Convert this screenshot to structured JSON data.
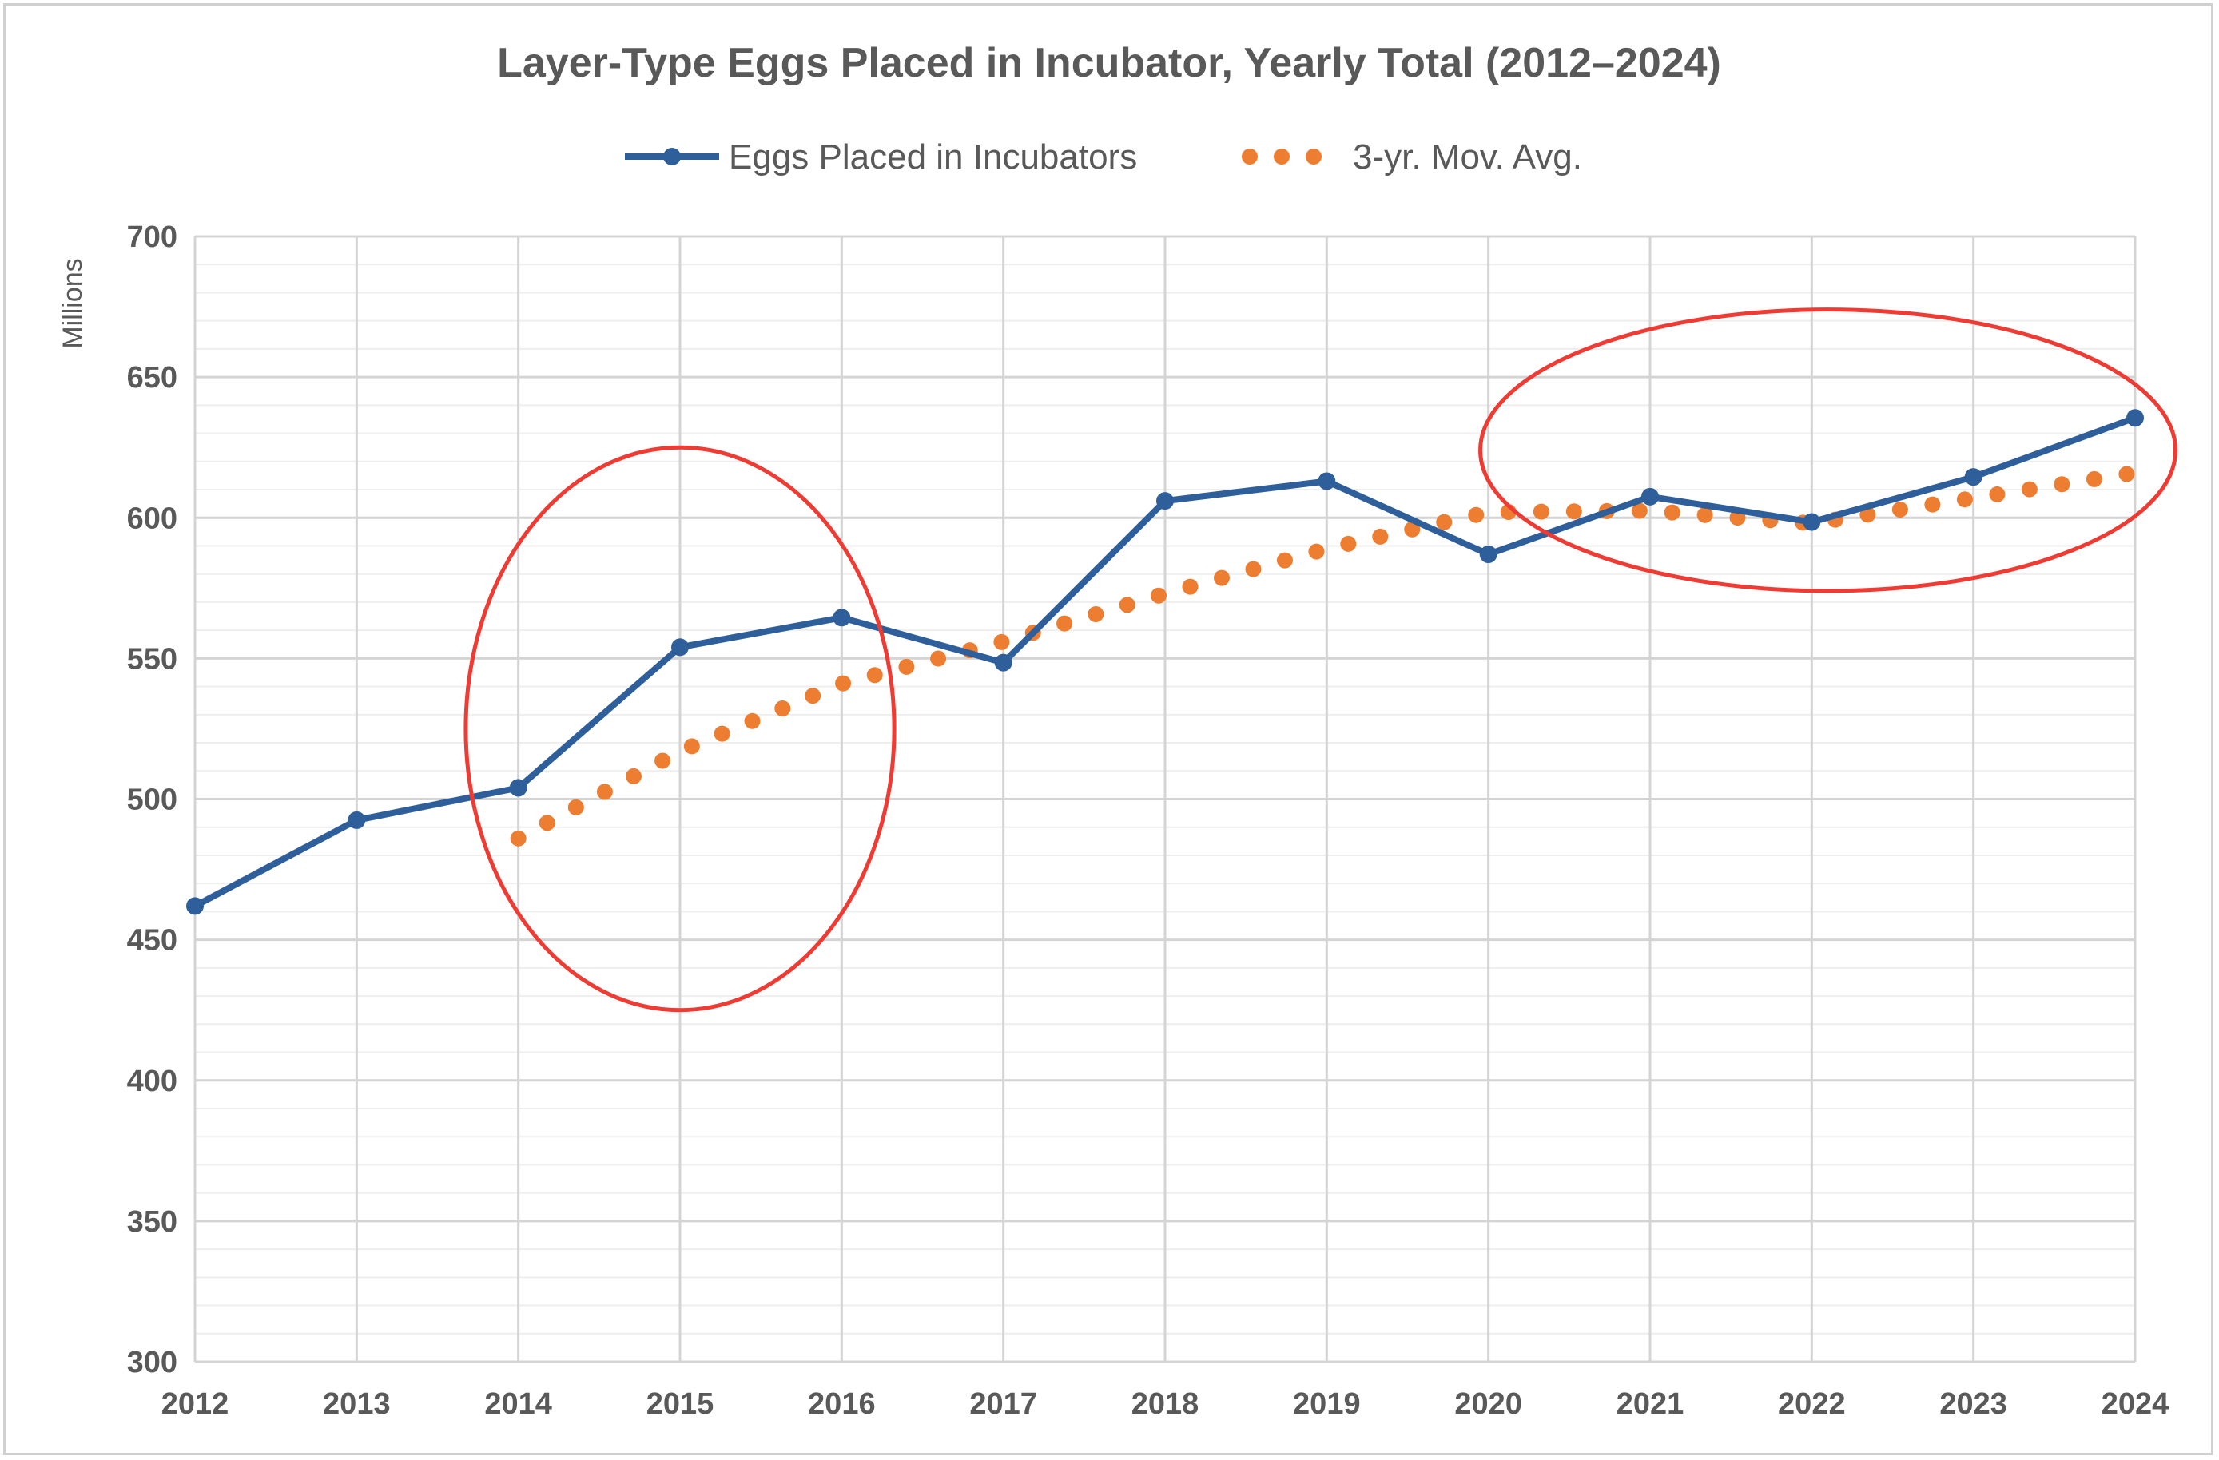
{
  "chart_data": {
    "type": "line",
    "title": "Layer-Type Eggs Placed in Incubator, Yearly Total (2012–2024)",
    "ylabel": "Millions",
    "xlabel": "",
    "x": [
      "2012",
      "2013",
      "2014",
      "2015",
      "2016",
      "2017",
      "2018",
      "2019",
      "2020",
      "2021",
      "2022",
      "2023",
      "2024"
    ],
    "ylim": [
      300,
      700
    ],
    "yticks": [
      "300",
      "350",
      "400",
      "450",
      "500",
      "550",
      "600",
      "650",
      "700"
    ],
    "grid": true,
    "legend_position": "top",
    "series": [
      {
        "name": "Eggs Placed in Incubators",
        "style": "solid-line-markers",
        "color": "#2e5f9a",
        "values": [
          462,
          492.5,
          504,
          554,
          564.5,
          548.5,
          606,
          613,
          587,
          607.5,
          598.5,
          614.5,
          635.5
        ]
      },
      {
        "name": "3-yr. Mov. Avg.",
        "style": "dotted",
        "color": "#ed7d31",
        "values": [
          null,
          null,
          486,
          517,
          541,
          556,
          573,
          589,
          602,
          602.5,
          598,
          607,
          616
        ]
      }
    ],
    "annotations": [
      {
        "shape": "ellipse",
        "color": "#ee3b33",
        "center_x": "2015",
        "center_y": 525,
        "x_span_years": 2.65,
        "y_span": 200
      },
      {
        "shape": "ellipse",
        "color": "#ee3b33",
        "center_x": "2022.1",
        "center_y": 624,
        "x_span_years": 4.3,
        "y_span": 100
      }
    ]
  }
}
